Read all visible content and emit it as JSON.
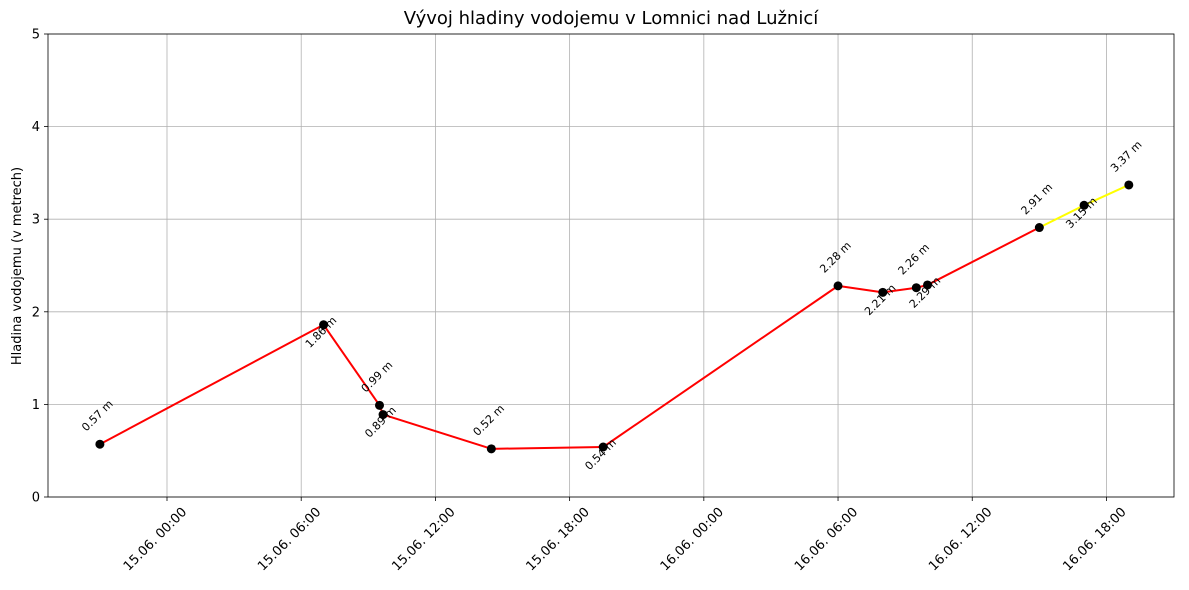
{
  "chart_data": {
    "type": "line",
    "title": "Vývoj hladiny vodojemu v Lomnici nad Lužnicí",
    "y_label": "Hladina vodojemu (v metrech)",
    "x": [
      -3,
      7,
      9.5,
      9.66,
      14.5,
      19.5,
      30,
      32,
      33.5,
      34,
      39,
      41,
      43
    ],
    "values": [
      0.57,
      1.86,
      0.99,
      0.89,
      0.52,
      0.54,
      2.28,
      2.21,
      2.26,
      2.29,
      2.91,
      3.15,
      3.37
    ],
    "value_labels": [
      "0.57 m",
      "1.86 m",
      "0.99 m",
      "0.89 m",
      "0.52 m",
      "0.54 m",
      "2.28 m",
      "2.21 m",
      "2.26 m",
      "2.29 m",
      "2.91 m",
      "3.15 m",
      "3.37 m"
    ],
    "segment_colors": [
      "#ff0000",
      "#ff0000",
      "#ff0000",
      "#ff0000",
      "#ff0000",
      "#ff0000",
      "#ff0000",
      "#ff0000",
      "#ff0000",
      "#ff0000",
      "#ffff00",
      "#ffff00"
    ],
    "marker_color": "#000000",
    "xlim": [
      -5.32,
      45.02
    ],
    "xticks": [
      {
        "value": 0,
        "label": "15.06. 00:00"
      },
      {
        "value": 6,
        "label": "15.06. 06:00"
      },
      {
        "value": 12,
        "label": "15.06. 12:00"
      },
      {
        "value": 18,
        "label": "15.06. 18:00"
      },
      {
        "value": 24,
        "label": "16.06. 00:00"
      },
      {
        "value": 30,
        "label": "16.06. 06:00"
      },
      {
        "value": 36,
        "label": "16.06. 12:00"
      },
      {
        "value": 42,
        "label": "16.06. 18:00"
      }
    ],
    "ylim": [
      0,
      5
    ],
    "yticks": [
      0,
      1,
      2,
      3,
      4,
      5
    ],
    "grid": true
  }
}
